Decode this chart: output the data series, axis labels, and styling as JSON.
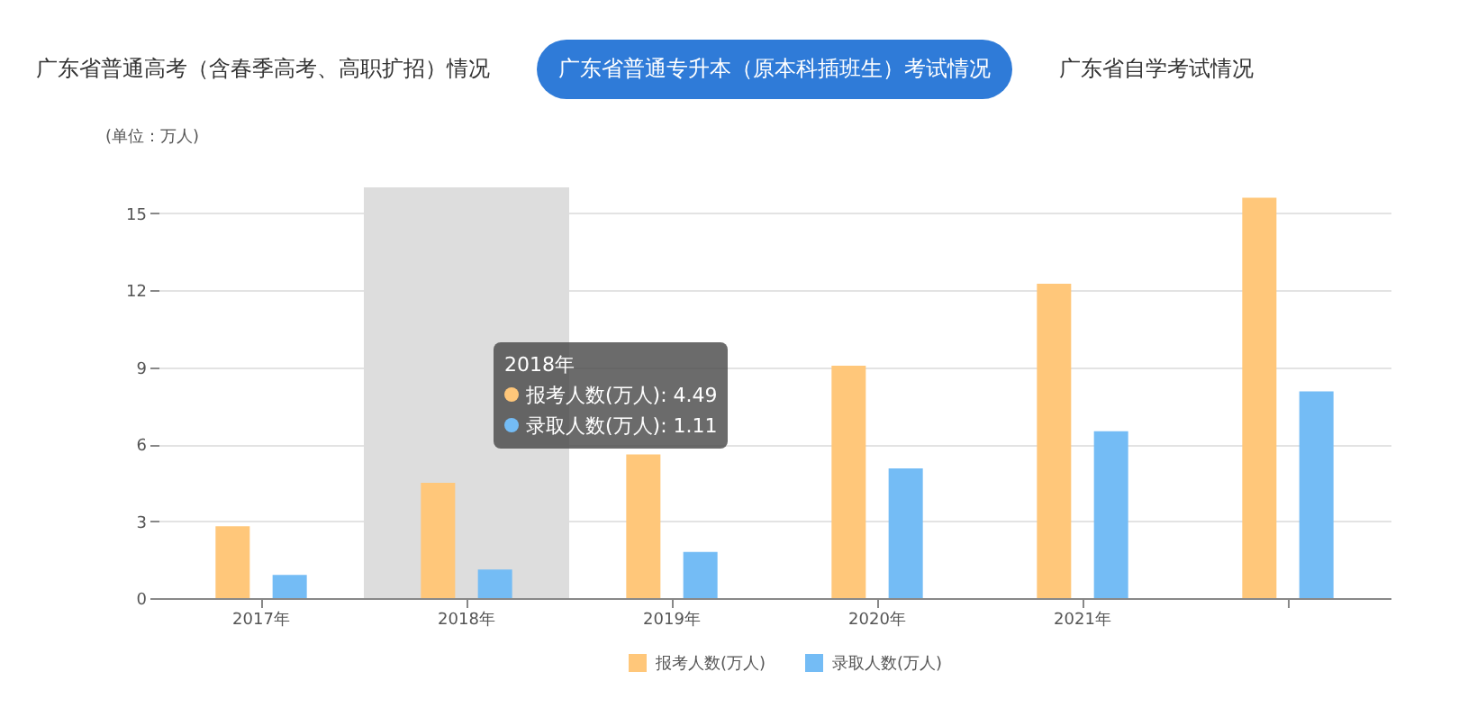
{
  "chart_data": {
    "type": "bar",
    "ylabel": "(单位：万人)",
    "categories": [
      "2017年",
      "2018年",
      "2019年",
      "2020年",
      "2021年",
      null
    ],
    "series": [
      {
        "name": "报考人数(万人)",
        "color": "#ffc77a",
        "values": [
          2.8,
          4.49,
          5.6,
          9.05,
          12.25,
          15.6
        ]
      },
      {
        "name": "录取人数(万人)",
        "color": "#74bcf5",
        "values": [
          0.9,
          1.11,
          1.8,
          5.05,
          6.5,
          8.05
        ]
      }
    ],
    "ylim": [
      0,
      16
    ],
    "yticks": [
      0,
      3,
      6,
      9,
      12,
      15
    ],
    "grid": "y",
    "legend": "bottom",
    "bands": [
      {
        "axis": "x",
        "from": "2018年",
        "to": "2018年",
        "color": "#dddddd"
      }
    ],
    "annotations": [
      "广东省普通高考（含春季高考、高职扩招）情况",
      "广东省普通专升本（原本科插班生）考试情况",
      "广东省自学考试情况",
      "2018年",
      "报考人数(万人): 4.49",
      "录取人数(万人): 1.11"
    ]
  }
}
